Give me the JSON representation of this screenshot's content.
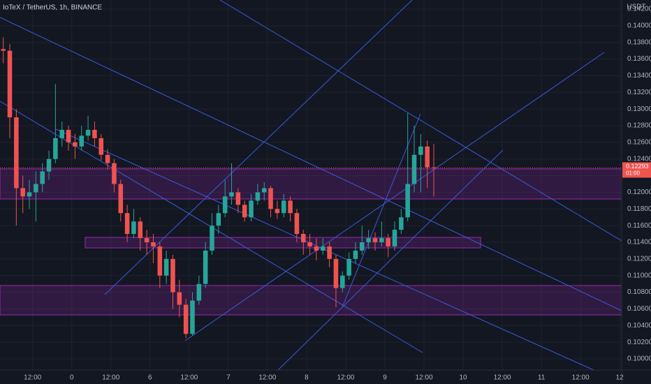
{
  "chart_data": {
    "type": "candlestick",
    "title": "IoTeX / TetherUS, 1h, BINANCE",
    "y_axis_label": "USDT",
    "last_price_label": "0.12293",
    "countdown": "01:00",
    "up_color": "#26a69a",
    "down_color": "#ef5350",
    "x": [
      -21,
      -19,
      -17,
      -15,
      -13,
      -11,
      -9,
      -7,
      -5,
      -3,
      -1,
      1,
      3,
      5,
      7,
      9,
      11,
      13,
      15,
      17,
      19,
      21,
      23,
      25,
      27,
      29,
      31,
      33,
      35,
      37,
      39,
      41,
      43,
      45,
      47,
      49,
      51,
      53,
      55,
      57,
      59,
      61,
      63,
      65,
      67,
      69,
      71,
      73,
      75,
      77,
      79,
      81,
      83,
      85,
      87,
      89,
      91,
      93,
      95,
      97,
      99,
      101,
      103,
      105,
      107,
      109,
      111
    ],
    "open": [
      0.1372,
      0.137,
      0.129,
      0.1205,
      0.1195,
      0.12,
      0.121,
      0.1225,
      0.124,
      0.1265,
      0.1275,
      0.126,
      0.1255,
      0.1268,
      0.1275,
      0.1265,
      0.1245,
      0.1235,
      0.121,
      0.1175,
      0.115,
      0.1165,
      0.1145,
      0.114,
      0.1135,
      0.11,
      0.112,
      0.108,
      0.1065,
      0.103,
      0.107,
      0.109,
      0.113,
      0.116,
      0.1175,
      0.1195,
      0.12,
      0.1185,
      0.117,
      0.119,
      0.12,
      0.1205,
      0.118,
      0.1175,
      0.119,
      0.1175,
      0.115,
      0.114,
      0.1135,
      0.113,
      0.1135,
      0.112,
      0.1085,
      0.11,
      0.112,
      0.113,
      0.114,
      0.1145,
      0.114,
      0.1145,
      0.1135,
      0.1155,
      0.117,
      0.121,
      0.1245,
      0.1255,
      0.123
    ],
    "high": [
      0.1386,
      0.1378,
      0.13,
      0.122,
      0.1215,
      0.1225,
      0.1235,
      0.125,
      0.133,
      0.1285,
      0.128,
      0.127,
      0.128,
      0.1292,
      0.1285,
      0.127,
      0.1252,
      0.124,
      0.1215,
      0.1185,
      0.118,
      0.117,
      0.1155,
      0.115,
      0.114,
      0.113,
      0.1125,
      0.1095,
      0.1072,
      0.108,
      0.11,
      0.114,
      0.1175,
      0.1185,
      0.1215,
      0.1235,
      0.1205,
      0.119,
      0.1198,
      0.121,
      0.1212,
      0.1208,
      0.119,
      0.1198,
      0.1195,
      0.118,
      0.1155,
      0.115,
      0.1145,
      0.1145,
      0.114,
      0.1125,
      0.1105,
      0.1128,
      0.114,
      0.116,
      0.1155,
      0.1152,
      0.1165,
      0.115,
      0.1165,
      0.118,
      0.1295,
      0.128,
      0.127,
      0.1262,
      0.1258
    ],
    "low": [
      0.1355,
      0.1265,
      0.116,
      0.1175,
      0.118,
      0.1165,
      0.12,
      0.1215,
      0.1235,
      0.1255,
      0.125,
      0.124,
      0.125,
      0.1262,
      0.1255,
      0.1238,
      0.1228,
      0.12,
      0.1165,
      0.114,
      0.1145,
      0.113,
      0.1125,
      0.1115,
      0.1085,
      0.109,
      0.106,
      0.105,
      0.1025,
      0.1028,
      0.1065,
      0.1085,
      0.1125,
      0.115,
      0.117,
      0.1185,
      0.1175,
      0.1165,
      0.1165,
      0.1185,
      0.119,
      0.117,
      0.1168,
      0.117,
      0.1165,
      0.114,
      0.1125,
      0.1125,
      0.1118,
      0.1125,
      0.111,
      0.1062,
      0.108,
      0.1095,
      0.1115,
      0.1125,
      0.1132,
      0.113,
      0.1135,
      0.1122,
      0.113,
      0.115,
      0.1165,
      0.12,
      0.12,
      0.1205,
      0.1195
    ],
    "close": [
      0.137,
      0.129,
      0.1205,
      0.1195,
      0.12,
      0.121,
      0.1225,
      0.124,
      0.1265,
      0.1275,
      0.126,
      0.1255,
      0.1268,
      0.1275,
      0.1265,
      0.1245,
      0.1235,
      0.121,
      0.1175,
      0.115,
      0.1165,
      0.1145,
      0.114,
      0.1135,
      0.11,
      0.112,
      0.108,
      0.1065,
      0.103,
      0.107,
      0.109,
      0.113,
      0.116,
      0.1175,
      0.1195,
      0.12,
      0.1185,
      0.117,
      0.119,
      0.12,
      0.1205,
      0.118,
      0.1175,
      0.119,
      0.1175,
      0.115,
      0.114,
      0.1135,
      0.113,
      0.1135,
      0.112,
      0.1085,
      0.11,
      0.112,
      0.113,
      0.114,
      0.1145,
      0.114,
      0.1145,
      0.1135,
      0.1155,
      0.117,
      0.121,
      0.1245,
      0.1255,
      0.123,
      0.12293
    ],
    "xlim": [
      -22,
      168.6
    ],
    "ylim": [
      0.09866,
      0.14309
    ],
    "xticks": [
      {
        "value": -12,
        "label": "12:00"
      },
      0,
      {
        "value": 12,
        "label": "12:00"
      },
      {
        "value": 24,
        "label": "6"
      },
      {
        "value": 36,
        "label": "12:00"
      },
      {
        "value": 48,
        "label": "7"
      },
      {
        "value": 60,
        "label": "12:00"
      },
      {
        "value": 72,
        "label": "8"
      },
      {
        "value": 84,
        "label": "12:00"
      },
      {
        "value": 96,
        "label": "9"
      },
      {
        "value": 108,
        "label": "12:00"
      },
      {
        "value": 120,
        "label": "10"
      },
      {
        "value": 132,
        "label": "12:00"
      },
      {
        "value": 144,
        "label": "11"
      },
      {
        "value": 156,
        "label": "12:00"
      },
      {
        "value": 168,
        "label": "12"
      }
    ],
    "yticks": [
      {
        "value": 0.142,
        "label": "0.14200"
      },
      {
        "value": 0.14,
        "label": "0.14000"
      },
      {
        "value": 0.138,
        "label": "0.13800"
      },
      {
        "value": 0.136,
        "label": "0.13600"
      },
      {
        "value": 0.134,
        "label": "0.13400"
      },
      {
        "value": 0.132,
        "label": "0.13200"
      },
      {
        "value": 0.13,
        "label": "0.13000"
      },
      {
        "value": 0.128,
        "label": "0.12800"
      },
      {
        "value": 0.126,
        "label": "0.12600"
      },
      {
        "value": 0.124,
        "label": "0.12400"
      },
      {
        "value": 0.122,
        "label": "0.12200"
      },
      {
        "value": 0.12,
        "label": "0.12000"
      },
      {
        "value": 0.118,
        "label": "0.11800"
      },
      {
        "value": 0.116,
        "label": "0.11600"
      },
      {
        "value": 0.114,
        "label": "0.11400"
      },
      {
        "value": 0.112,
        "label": "0.11200"
      },
      {
        "value": 0.11,
        "label": "0.11000"
      },
      {
        "value": 0.108,
        "label": "0.10800"
      },
      {
        "value": 0.106,
        "label": "0.10600"
      },
      {
        "value": 0.104,
        "label": "0.10400"
      },
      {
        "value": 0.102,
        "label": "0.10200"
      },
      {
        "value": 0.1,
        "label": "0.10000"
      }
    ],
    "grid": true
  }
}
